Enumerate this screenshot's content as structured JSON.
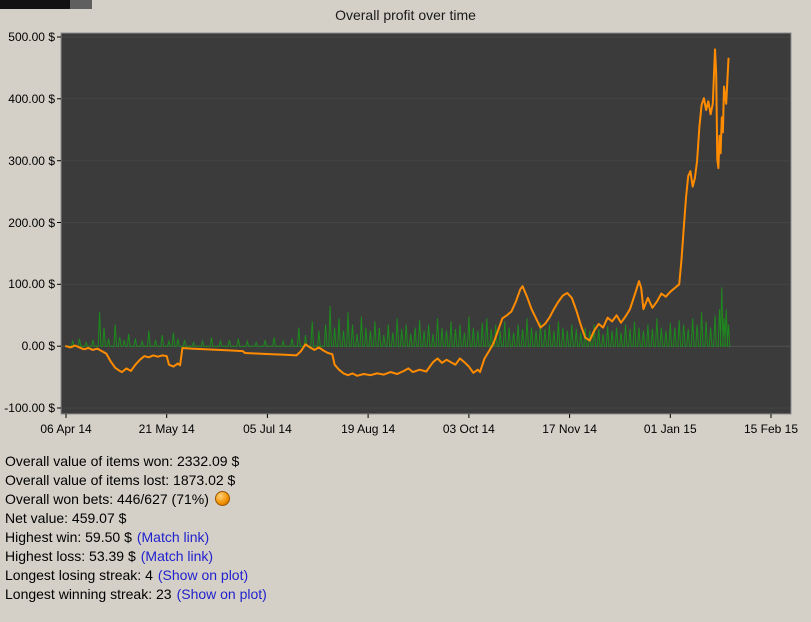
{
  "chart_data": {
    "type": "line",
    "title": "Overall profit over time",
    "ylim": [
      -100,
      500
    ],
    "y_tick_labels": [
      "500.00 $",
      "400.00 $",
      "300.00 $",
      "200.00 $",
      "100.00 $",
      "0.00 $",
      "-100.00 $"
    ],
    "x_tick_labels": [
      "06 Apr 14",
      "21 May 14",
      "05 Jul 14",
      "19 Aug 14",
      "03 Oct 14",
      "17 Nov 14",
      "01 Jan 15",
      "15 Feb 15"
    ],
    "x_axis": {
      "unit": "days since 06 Apr 14",
      "range": [
        0,
        315
      ],
      "tick_interval_days": 45
    },
    "grid": "horizontal-subtle",
    "legend": "none",
    "plot_background": "#3b3b3b",
    "series": [
      {
        "name": "overall_profit_orange",
        "color": "#ff8c00",
        "width": 2,
        "points": [
          [
            0,
            0
          ],
          [
            2,
            -2
          ],
          [
            4,
            1
          ],
          [
            6,
            -2
          ],
          [
            8,
            -5
          ],
          [
            10,
            -3
          ],
          [
            12,
            -6
          ],
          [
            14,
            -4
          ],
          [
            16,
            -8
          ],
          [
            18,
            -12
          ],
          [
            20,
            -25
          ],
          [
            22,
            -35
          ],
          [
            24,
            -40
          ],
          [
            25,
            -42
          ],
          [
            27,
            -36
          ],
          [
            29,
            -40
          ],
          [
            31,
            -30
          ],
          [
            33,
            -22
          ],
          [
            35,
            -16
          ],
          [
            37,
            -18
          ],
          [
            39,
            -15
          ],
          [
            41,
            -17
          ],
          [
            43,
            -15
          ],
          [
            45,
            -16
          ],
          [
            46,
            -30
          ],
          [
            48,
            -33
          ],
          [
            50,
            -28
          ],
          [
            51,
            -31
          ],
          [
            52,
            -3
          ],
          [
            56,
            -4
          ],
          [
            62,
            -5
          ],
          [
            68,
            -6
          ],
          [
            74,
            -7
          ],
          [
            79,
            -8
          ],
          [
            80,
            -11
          ],
          [
            86,
            -12
          ],
          [
            92,
            -13
          ],
          [
            98,
            -14
          ],
          [
            103,
            -15
          ],
          [
            105,
            -8
          ],
          [
            107,
            3
          ],
          [
            109,
            -2
          ],
          [
            111,
            -6
          ],
          [
            113,
            -2
          ],
          [
            115,
            -7
          ],
          [
            117,
            -11
          ],
          [
            119,
            -13
          ],
          [
            120,
            -30
          ],
          [
            122,
            -38
          ],
          [
            124,
            -44
          ],
          [
            126,
            -47
          ],
          [
            128,
            -44
          ],
          [
            130,
            -48
          ],
          [
            133,
            -45
          ],
          [
            136,
            -47
          ],
          [
            139,
            -44
          ],
          [
            142,
            -46
          ],
          [
            145,
            -42
          ],
          [
            148,
            -45
          ],
          [
            151,
            -40
          ],
          [
            153,
            -36
          ],
          [
            155,
            -42
          ],
          [
            158,
            -38
          ],
          [
            161,
            -41
          ],
          [
            164,
            -26
          ],
          [
            166,
            -20
          ],
          [
            168,
            -27
          ],
          [
            170,
            -22
          ],
          [
            172,
            -26
          ],
          [
            174,
            -30
          ],
          [
            176,
            -20
          ],
          [
            178,
            -26
          ],
          [
            180,
            -33
          ],
          [
            182,
            -43
          ],
          [
            184,
            -38
          ],
          [
            185,
            -42
          ],
          [
            187,
            -20
          ],
          [
            189,
            -8
          ],
          [
            191,
            5
          ],
          [
            193,
            25
          ],
          [
            195,
            45
          ],
          [
            197,
            50
          ],
          [
            199,
            56
          ],
          [
            201,
            72
          ],
          [
            203,
            92
          ],
          [
            204,
            97
          ],
          [
            206,
            80
          ],
          [
            208,
            60
          ],
          [
            210,
            45
          ],
          [
            212,
            30
          ],
          [
            214,
            36
          ],
          [
            216,
            46
          ],
          [
            218,
            60
          ],
          [
            220,
            72
          ],
          [
            222,
            82
          ],
          [
            224,
            86
          ],
          [
            226,
            78
          ],
          [
            228,
            58
          ],
          [
            230,
            34
          ],
          [
            232,
            14
          ],
          [
            234,
            9
          ],
          [
            236,
            25
          ],
          [
            238,
            36
          ],
          [
            240,
            30
          ],
          [
            242,
            46
          ],
          [
            244,
            40
          ],
          [
            246,
            50
          ],
          [
            248,
            38
          ],
          [
            250,
            48
          ],
          [
            252,
            60
          ],
          [
            254,
            82
          ],
          [
            256,
            105
          ],
          [
            257,
            94
          ],
          [
            258,
            60
          ],
          [
            260,
            78
          ],
          [
            262,
            62
          ],
          [
            264,
            72
          ],
          [
            266,
            85
          ],
          [
            268,
            80
          ],
          [
            270,
            88
          ],
          [
            272,
            94
          ],
          [
            274,
            100
          ],
          [
            275,
            140
          ],
          [
            276,
            190
          ],
          [
            277,
            240
          ],
          [
            278,
            275
          ],
          [
            279,
            283
          ],
          [
            280,
            258
          ],
          [
            281,
            272
          ],
          [
            282,
            300
          ],
          [
            283,
            355
          ],
          [
            284,
            390
          ],
          [
            285,
            401
          ],
          [
            286,
            382
          ],
          [
            287,
            396
          ],
          [
            288,
            375
          ],
          [
            289,
            392
          ],
          [
            290,
            480
          ],
          [
            290.5,
            440
          ],
          [
            291,
            302
          ],
          [
            291.5,
            288
          ],
          [
            292,
            340
          ],
          [
            292.5,
            312
          ],
          [
            293,
            370
          ],
          [
            293.5,
            346
          ],
          [
            294,
            420
          ],
          [
            295,
            392
          ],
          [
            296,
            465
          ]
        ]
      },
      {
        "name": "single_bet_values_green",
        "color": "#1d8a1d",
        "width": 1,
        "render": "spikes",
        "baseline": 0,
        "end_day": 296,
        "spikes": [
          [
            3,
            8
          ],
          [
            6,
            12
          ],
          [
            9,
            6
          ],
          [
            12,
            10
          ],
          [
            15,
            55
          ],
          [
            17,
            30
          ],
          [
            19,
            12
          ],
          [
            22,
            35
          ],
          [
            24,
            15
          ],
          [
            26,
            10
          ],
          [
            28,
            20
          ],
          [
            31,
            12
          ],
          [
            34,
            8
          ],
          [
            37,
            25
          ],
          [
            40,
            10
          ],
          [
            43,
            18
          ],
          [
            46,
            8
          ],
          [
            48,
            22
          ],
          [
            50,
            12
          ],
          [
            53,
            10
          ],
          [
            57,
            6
          ],
          [
            61,
            8
          ],
          [
            65,
            14
          ],
          [
            69,
            8
          ],
          [
            73,
            10
          ],
          [
            77,
            12
          ],
          [
            81,
            8
          ],
          [
            85,
            6
          ],
          [
            89,
            10
          ],
          [
            93,
            14
          ],
          [
            97,
            8
          ],
          [
            101,
            12
          ],
          [
            104,
            30
          ],
          [
            107,
            18
          ],
          [
            110,
            40
          ],
          [
            113,
            25
          ],
          [
            116,
            35
          ],
          [
            118,
            65
          ],
          [
            120,
            30
          ],
          [
            122,
            45
          ],
          [
            124,
            25
          ],
          [
            126,
            55
          ],
          [
            128,
            35
          ],
          [
            130,
            20
          ],
          [
            132,
            48
          ],
          [
            134,
            30
          ],
          [
            136,
            25
          ],
          [
            138,
            40
          ],
          [
            140,
            30
          ],
          [
            142,
            18
          ],
          [
            144,
            35
          ],
          [
            146,
            22
          ],
          [
            148,
            45
          ],
          [
            150,
            28
          ],
          [
            152,
            35
          ],
          [
            154,
            20
          ],
          [
            156,
            30
          ],
          [
            158,
            42
          ],
          [
            160,
            25
          ],
          [
            162,
            35
          ],
          [
            164,
            20
          ],
          [
            166,
            45
          ],
          [
            168,
            30
          ],
          [
            170,
            25
          ],
          [
            172,
            40
          ],
          [
            174,
            28
          ],
          [
            176,
            35
          ],
          [
            178,
            22
          ],
          [
            180,
            48
          ],
          [
            182,
            30
          ],
          [
            184,
            25
          ],
          [
            186,
            38
          ],
          [
            188,
            45
          ],
          [
            190,
            28
          ],
          [
            192,
            35
          ],
          [
            194,
            25
          ],
          [
            196,
            40
          ],
          [
            198,
            30
          ],
          [
            200,
            22
          ],
          [
            202,
            35
          ],
          [
            204,
            28
          ],
          [
            206,
            45
          ],
          [
            208,
            30
          ],
          [
            210,
            25
          ],
          [
            212,
            38
          ],
          [
            214,
            28
          ],
          [
            216,
            35
          ],
          [
            218,
            25
          ],
          [
            220,
            40
          ],
          [
            222,
            30
          ],
          [
            224,
            25
          ],
          [
            226,
            35
          ],
          [
            228,
            28
          ],
          [
            230,
            22
          ],
          [
            232,
            30
          ],
          [
            234,
            25
          ],
          [
            236,
            35
          ],
          [
            238,
            28
          ],
          [
            240,
            20
          ],
          [
            242,
            32
          ],
          [
            244,
            25
          ],
          [
            246,
            30
          ],
          [
            248,
            22
          ],
          [
            250,
            35
          ],
          [
            252,
            28
          ],
          [
            254,
            40
          ],
          [
            256,
            30
          ],
          [
            258,
            25
          ],
          [
            260,
            35
          ],
          [
            262,
            28
          ],
          [
            264,
            45
          ],
          [
            266,
            30
          ],
          [
            268,
            25
          ],
          [
            270,
            38
          ],
          [
            272,
            30
          ],
          [
            274,
            42
          ],
          [
            276,
            35
          ],
          [
            278,
            28
          ],
          [
            280,
            45
          ],
          [
            282,
            35
          ],
          [
            284,
            55
          ],
          [
            286,
            40
          ],
          [
            288,
            30
          ],
          [
            290,
            50
          ],
          [
            292,
            60
          ],
          [
            293,
            95
          ],
          [
            294,
            45
          ],
          [
            295,
            60
          ],
          [
            296,
            35
          ]
        ]
      }
    ]
  },
  "stats": {
    "lines": [
      {
        "text": "Overall value of items won: 2332.09 $"
      },
      {
        "text": "Overall value of items lost: 1873.02 $"
      },
      {
        "text": "Overall won bets: 446/627 (71%)",
        "icon": "coin-icon"
      },
      {
        "text": "Net value: 459.07 $"
      },
      {
        "text": "Highest win: 59.50 $",
        "link": "(Match link)"
      },
      {
        "text": "Highest loss: 53.39 $",
        "link": "(Match link)"
      },
      {
        "text": "Longest losing streak: 4",
        "link": "(Show on plot)"
      },
      {
        "text": "Longest winning streak: 23",
        "link": "(Show on plot)"
      }
    ]
  }
}
